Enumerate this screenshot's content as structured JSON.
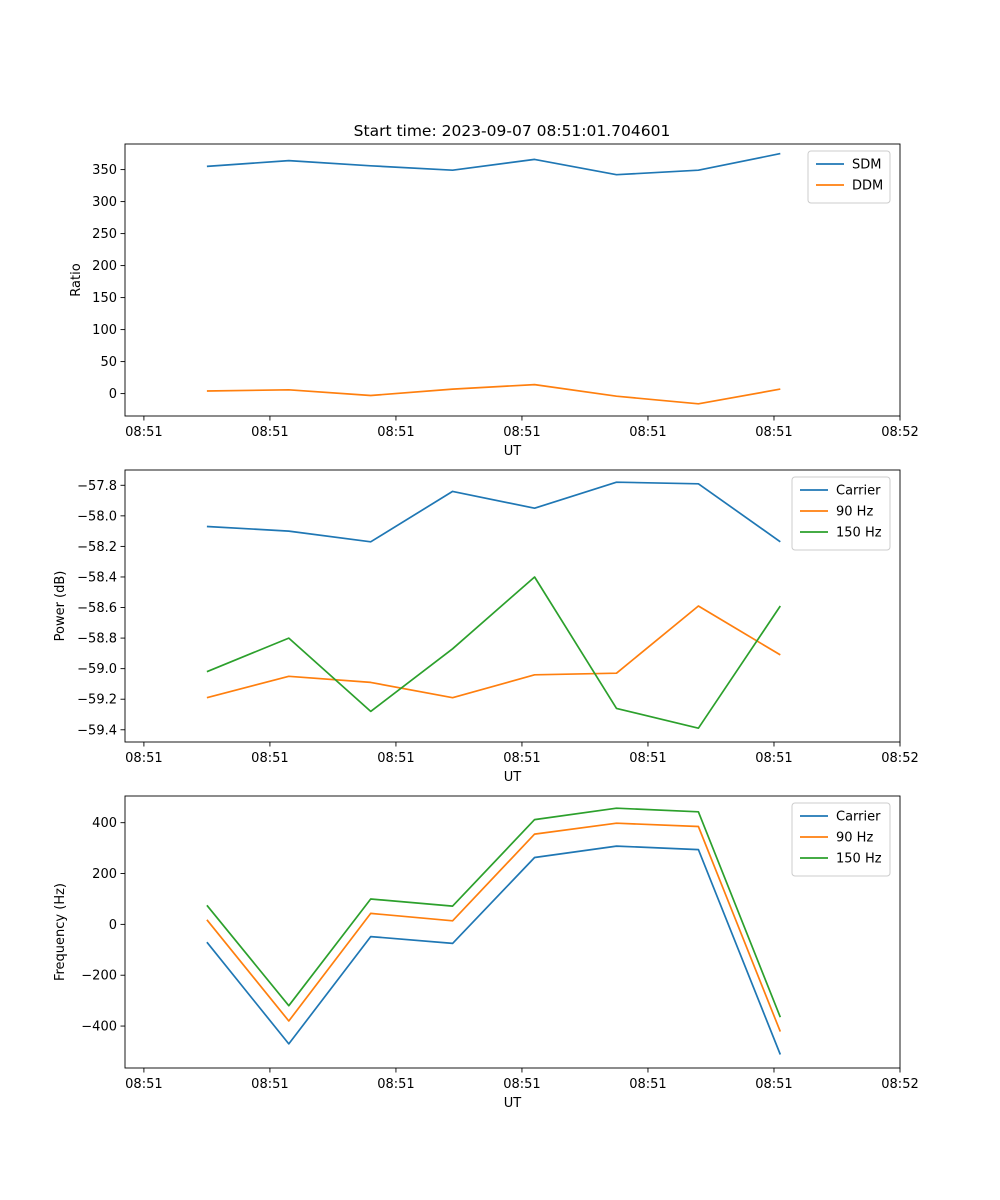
{
  "figure_title": "Start time: 2023-09-07 08:51:01.704601",
  "colors": {
    "blue": "#1f77b4",
    "orange": "#ff7f0e",
    "green": "#2ca02c"
  },
  "chart_data": [
    {
      "type": "line",
      "title": "Start time: 2023-09-07 08:51:01.704601",
      "xlabel": "UT",
      "ylabel": "Ratio",
      "x": [
        0.5,
        1.15,
        1.8,
        2.45,
        3.1,
        3.75,
        4.4,
        5.05
      ],
      "xlim": [
        -0.15,
        6.0
      ],
      "xticks": [
        0,
        1,
        2,
        3,
        4,
        5,
        6
      ],
      "xticklabels": [
        "08:51",
        "08:51",
        "08:51",
        "08:51",
        "08:51",
        "08:51",
        "08:52"
      ],
      "ylim": [
        -35,
        390
      ],
      "yticks": [
        0,
        50,
        100,
        150,
        200,
        250,
        300,
        350
      ],
      "yticklabels": [
        "0",
        "50",
        "100",
        "150",
        "200",
        "250",
        "300",
        "350"
      ],
      "legend": "top-right",
      "series": [
        {
          "name": "SDM",
          "color": "#1f77b4",
          "values": [
            355,
            364,
            356,
            349,
            366,
            342,
            349,
            375
          ]
        },
        {
          "name": "DDM",
          "color": "#ff7f0e",
          "values": [
            4,
            6,
            -3,
            7,
            14,
            -4,
            -16,
            7
          ]
        }
      ]
    },
    {
      "type": "line",
      "title": "",
      "xlabel": "UT",
      "ylabel": "Power (dB)",
      "x": [
        0.5,
        1.15,
        1.8,
        2.45,
        3.1,
        3.75,
        4.4,
        5.05
      ],
      "xlim": [
        -0.15,
        6.0
      ],
      "xticks": [
        0,
        1,
        2,
        3,
        4,
        5,
        6
      ],
      "xticklabels": [
        "08:51",
        "08:51",
        "08:51",
        "08:51",
        "08:51",
        "08:51",
        "08:52"
      ],
      "ylim": [
        -59.48,
        -57.7
      ],
      "yticks": [
        -59.4,
        -59.2,
        -59.0,
        -58.8,
        -58.6,
        -58.4,
        -58.2,
        -58.0,
        -57.8
      ],
      "yticklabels": [
        "−59.4",
        "−59.2",
        "−59.0",
        "−58.8",
        "−58.6",
        "−58.4",
        "−58.2",
        "−58.0",
        "−57.8"
      ],
      "legend": "top-right",
      "series": [
        {
          "name": "Carrier",
          "color": "#1f77b4",
          "values": [
            -58.07,
            -58.1,
            -58.17,
            -57.84,
            -57.95,
            -57.78,
            -57.79,
            -58.17
          ]
        },
        {
          "name": "90 Hz",
          "color": "#ff7f0e",
          "values": [
            -59.19,
            -59.05,
            -59.09,
            -59.19,
            -59.04,
            -59.03,
            -58.59,
            -58.91
          ]
        },
        {
          "name": "150 Hz",
          "color": "#2ca02c",
          "values": [
            -59.02,
            -58.8,
            -59.28,
            -58.87,
            -58.4,
            -59.26,
            -59.39,
            -58.59
          ]
        }
      ]
    },
    {
      "type": "line",
      "title": "",
      "xlabel": "UT",
      "ylabel": "Frequency (Hz)",
      "x": [
        0.5,
        1.15,
        1.8,
        2.45,
        3.1,
        3.75,
        4.4,
        5.05
      ],
      "xlim": [
        -0.15,
        6.0
      ],
      "xticks": [
        0,
        1,
        2,
        3,
        4,
        5,
        6
      ],
      "xticklabels": [
        "08:51",
        "08:51",
        "08:51",
        "08:51",
        "08:51",
        "08:51",
        "08:52"
      ],
      "ylim": [
        -565,
        505
      ],
      "yticks": [
        -400,
        -200,
        0,
        200,
        400
      ],
      "yticklabels": [
        "−400",
        "−200",
        "0",
        "200",
        "400"
      ],
      "legend": "top-right",
      "series": [
        {
          "name": "Carrier",
          "color": "#1f77b4",
          "values": [
            -70,
            -470,
            -48,
            -75,
            263,
            308,
            294,
            -512
          ]
        },
        {
          "name": "90 Hz",
          "color": "#ff7f0e",
          "values": [
            18,
            -380,
            43,
            14,
            355,
            398,
            385,
            -422
          ]
        },
        {
          "name": "150 Hz",
          "color": "#2ca02c",
          "values": [
            75,
            -320,
            100,
            72,
            412,
            457,
            443,
            -365
          ]
        }
      ]
    }
  ]
}
